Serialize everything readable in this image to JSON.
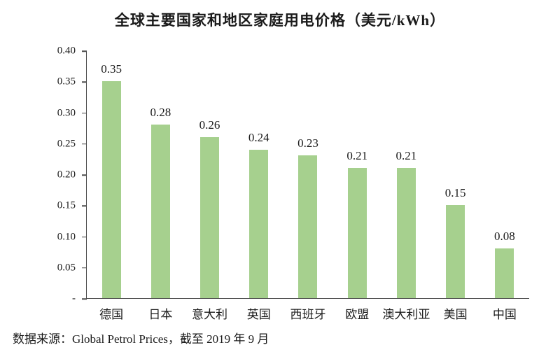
{
  "title": "全球主要国家和地区家庭用电价格（美元/kWh）",
  "source_note": "数据来源：Global Petrol Prices，截至 2019 年 9 月",
  "colors": {
    "bar": "#a6d08e",
    "axis": "#4d4d4d",
    "text": "#1a1a1a",
    "background": "#ffffff"
  },
  "chart_data": {
    "type": "bar",
    "title": "全球主要国家和地区家庭用电价格（美元/kWh）",
    "categories": [
      "德国",
      "日本",
      "意大利",
      "英国",
      "西班牙",
      "欧盟",
      "澳大利亚",
      "美国",
      "中国"
    ],
    "values": [
      0.35,
      0.28,
      0.26,
      0.24,
      0.23,
      0.21,
      0.21,
      0.15,
      0.08
    ],
    "data_labels": [
      "0.35",
      "0.28",
      "0.26",
      "0.24",
      "0.23",
      "0.21",
      "0.21",
      "0.15",
      "0.08"
    ],
    "xlabel": "",
    "ylabel": "",
    "ylim": [
      0,
      0.4
    ],
    "ytick_step": 0.05,
    "ytick_labels": [
      "0.40",
      "0.35",
      "0.30",
      "0.25",
      "0.20",
      "0.15",
      "0.10",
      "0.05",
      "-"
    ],
    "grid": false,
    "legend": "none",
    "bar_color": "#a6d08e"
  }
}
